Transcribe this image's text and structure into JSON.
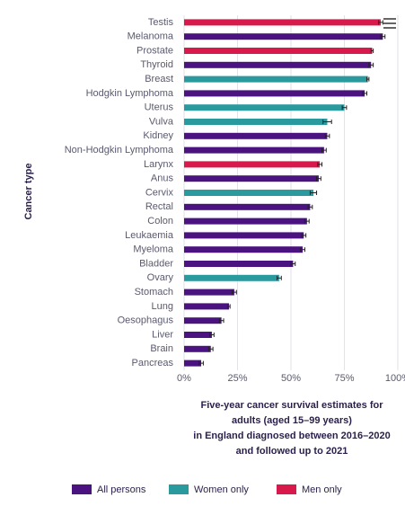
{
  "chart_data": {
    "type": "horizontal-bar",
    "y_axis_label": "Cancer type",
    "x_axis_label": [
      "Five-year cancer survival estimates for",
      "adults (aged 15–99 years)",
      "in England diagnosed between 2016–2020",
      "and followed up to 2021"
    ],
    "categories": [
      "Testis",
      "Melanoma",
      "Prostate",
      "Thyroid",
      "Breast",
      "Hodgkin Lymphoma",
      "Uterus",
      "Vulva",
      "Kidney",
      "Non-Hodgkin Lymphoma",
      "Larynx",
      "Anus",
      "Cervix",
      "Rectal",
      "Colon",
      "Leukaemia",
      "Myeloma",
      "Bladder",
      "Ovary",
      "Stomach",
      "Lung",
      "Oesophagus",
      "Liver",
      "Brain",
      "Pancreas"
    ],
    "series": [
      {
        "name": "All persons",
        "color": "#4a1380",
        "values": [
          null,
          93,
          null,
          87.5,
          null,
          84.5,
          null,
          null,
          67,
          65.5,
          null,
          63,
          null,
          59,
          57.5,
          56,
          55.5,
          51,
          null,
          23.5,
          21,
          17.5,
          13,
          12.5,
          8
        ],
        "errors": [
          null,
          1,
          null,
          1,
          null,
          1,
          null,
          null,
          1,
          1,
          null,
          1,
          null,
          1,
          1,
          1,
          1,
          1,
          null,
          1,
          0.5,
          1,
          1,
          1,
          1
        ]
      },
      {
        "name": "Women only",
        "color": "#2a9a9e",
        "values": [
          null,
          null,
          null,
          null,
          86,
          null,
          75,
          67,
          null,
          null,
          null,
          null,
          60.5,
          null,
          null,
          null,
          null,
          null,
          44.5,
          null,
          null,
          null,
          null,
          null,
          null
        ],
        "errors": [
          null,
          null,
          null,
          null,
          0.5,
          null,
          1,
          2,
          null,
          null,
          null,
          null,
          1.5,
          null,
          null,
          null,
          null,
          null,
          1,
          null,
          null,
          null,
          null,
          null,
          null
        ]
      },
      {
        "name": "Men only",
        "color": "#d8194c",
        "values": [
          92,
          null,
          88,
          null,
          null,
          null,
          null,
          null,
          null,
          null,
          63.5,
          null,
          null,
          null,
          null,
          null,
          null,
          null,
          null,
          null,
          null,
          null,
          null,
          null,
          null
        ],
        "errors": [
          1,
          null,
          0.5,
          null,
          null,
          null,
          null,
          null,
          null,
          null,
          1,
          null,
          null,
          null,
          null,
          null,
          null,
          null,
          null,
          null,
          null,
          null,
          null,
          null,
          null
        ]
      }
    ],
    "xlim": [
      0,
      100
    ],
    "xticks": [
      {
        "value": 0,
        "label": "0%"
      },
      {
        "value": 25,
        "label": "25%"
      },
      {
        "value": 50,
        "label": "50%"
      },
      {
        "value": 75,
        "label": "75%"
      },
      {
        "value": 100,
        "label": "100%"
      }
    ],
    "grid": true
  }
}
